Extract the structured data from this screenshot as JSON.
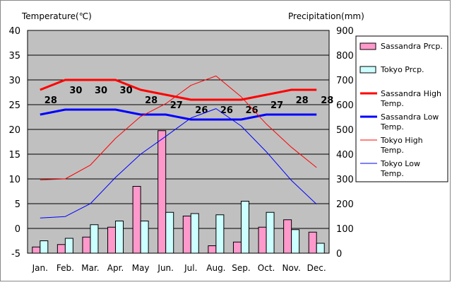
{
  "chart_data": {
    "type": "bar+line",
    "categories": [
      "Jan.",
      "Feb.",
      "Mar.",
      "Apr.",
      "May",
      "Jun.",
      "Jul.",
      "Aug.",
      "Sep.",
      "Oct.",
      "Nov.",
      "Dec."
    ],
    "left_axis": {
      "label": "Temperature(℃)",
      "ylim": [
        -5,
        40
      ],
      "ticks": [
        -5,
        0,
        5,
        10,
        15,
        20,
        25,
        30,
        35,
        40
      ]
    },
    "right_axis": {
      "label": "Precipitation(mm)",
      "ylim": [
        0,
        900
      ],
      "ticks": [
        0,
        100,
        200,
        300,
        400,
        500,
        600,
        700,
        800,
        900
      ]
    },
    "bar_series": [
      {
        "name": "Sassandra Prcp.",
        "color": "#ff99cc",
        "values": [
          25,
          35,
          65,
          105,
          270,
          495,
          150,
          30,
          45,
          105,
          135,
          85
        ]
      },
      {
        "name": "Tokyo Prcp.",
        "color": "#ccffff",
        "values": [
          50,
          60,
          115,
          130,
          130,
          165,
          160,
          155,
          210,
          165,
          95,
          40
        ]
      }
    ],
    "line_series": [
      {
        "name": "Sassandra High Temp.",
        "color": "#ff0000",
        "width": 3,
        "values": [
          28,
          30,
          30,
          30,
          28,
          27,
          26,
          26,
          26,
          27,
          28,
          28
        ],
        "labeled": true
      },
      {
        "name": "Sassandra Low Temp.",
        "color": "#0000ff",
        "width": 3,
        "values": [
          23,
          24,
          24,
          24,
          23,
          23,
          22,
          22,
          22,
          23,
          23,
          23
        ],
        "labeled": false
      },
      {
        "name": "Tokyo High Temp.",
        "color": "#ff0000",
        "width": 1,
        "values": [
          9.8,
          10,
          12.8,
          18.2,
          22.6,
          25.2,
          28.9,
          30.8,
          26.6,
          21.1,
          16.4,
          12.3
        ],
        "labeled": false
      },
      {
        "name": "Tokyo Low Temp.",
        "color": "#0000ff",
        "width": 1,
        "values": [
          2.1,
          2.4,
          5,
          10.3,
          15,
          18.6,
          22.3,
          24.2,
          20.7,
          15.5,
          9.7,
          4.9
        ],
        "labeled": false
      }
    ],
    "grid": true,
    "legend_position": "right"
  }
}
